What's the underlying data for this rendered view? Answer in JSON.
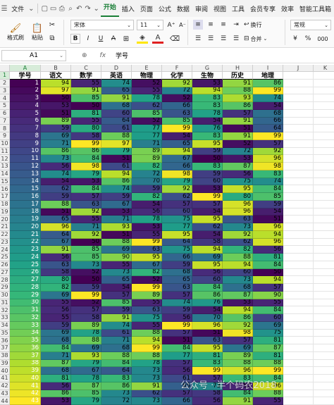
{
  "menubar": {
    "file": "文件",
    "tabs": [
      "开始",
      "插入",
      "页面",
      "公式",
      "数据",
      "审阅",
      "视图",
      "工具",
      "会员专享",
      "效率",
      "智能工具箱"
    ],
    "active": "开始"
  },
  "ribbon": {
    "format_painter": "格式刷",
    "paste": "粘贴",
    "font_name": "宋体",
    "font_size": "11",
    "wrap": "换行",
    "merge": "合并",
    "number_format": "常规"
  },
  "formula_bar": {
    "name_box": "A1",
    "fx": "fx",
    "value": "学号"
  },
  "columns": [
    "A",
    "B",
    "C",
    "D",
    "E",
    "F",
    "G",
    "H",
    "I",
    "J",
    "K"
  ],
  "headers": [
    "学号",
    "语文",
    "数学",
    "英语",
    "物理",
    "化学",
    "生物",
    "历史",
    "地理"
  ],
  "rows": [
    [
      1,
      94,
      55,
      74,
      52,
      92,
      53,
      91,
      86
    ],
    [
      2,
      97,
      91,
      65,
      55,
      72,
      94,
      88,
      99
    ],
    [
      3,
      50,
      85,
      91,
      78,
      52,
      83,
      93,
      74
    ],
    [
      4,
      53,
      50,
      68,
      62,
      66,
      83,
      86,
      54
    ],
    [
      5,
      51,
      81,
      60,
      85,
      63,
      78,
      57,
      68
    ],
    [
      6,
      89,
      55,
      64,
      52,
      85,
      54,
      91,
      66
    ],
    [
      7,
      59,
      80,
      61,
      77,
      99,
      76,
      51,
      64
    ],
    [
      8,
      69,
      58,
      88,
      77,
      54,
      83,
      91,
      99
    ],
    [
      9,
      71,
      99,
      97,
      71,
      65,
      95,
      52,
      57
    ],
    [
      10,
      86,
      86,
      79,
      89,
      94,
      59,
      72,
      92
    ],
    [
      11,
      73,
      84,
      51,
      89,
      67,
      50,
      53,
      96
    ],
    [
      12,
      56,
      98,
      61,
      82,
      66,
      83,
      87,
      98
    ],
    [
      13,
      74,
      79,
      94,
      72,
      98,
      59,
      56,
      83
    ],
    [
      14,
      54,
      53,
      86,
      70,
      79,
      60,
      75,
      74
    ],
    [
      15,
      62,
      84,
      74,
      59,
      92,
      53,
      95,
      84
    ],
    [
      16,
      59,
      57,
      59,
      82,
      62,
      99,
      80,
      85
    ],
    [
      17,
      88,
      63,
      67,
      54,
      57,
      57,
      96,
      59
    ],
    [
      18,
      51,
      92,
      53,
      56,
      60,
      54,
      96,
      54
    ],
    [
      19,
      65,
      55,
      71,
      78,
      75,
      95,
      63,
      51
    ],
    [
      20,
      96,
      71,
      93,
      53,
      77,
      62,
      73,
      96
    ],
    [
      21,
      64,
      92,
      51,
      55,
      95,
      54,
      92,
      94
    ],
    [
      22,
      67,
      50,
      88,
      99,
      64,
      58,
      62,
      96
    ],
    [
      23,
      91,
      85,
      69,
      63,
      75,
      94,
      82,
      56
    ],
    [
      24,
      56,
      85,
      90,
      95,
      66,
      69,
      88,
      81
    ],
    [
      25,
      63,
      73,
      55,
      67,
      59,
      95,
      94,
      84
    ],
    [
      26,
      58,
      52,
      73,
      82,
      68,
      56,
      60,
      50
    ],
    [
      27,
      80,
      50,
      65,
      52,
      65,
      60,
      73,
      94
    ],
    [
      28,
      82,
      59,
      54,
      99,
      63,
      84,
      68,
      57
    ],
    [
      29,
      69,
      99,
      57,
      89,
      57,
      86,
      87,
      90
    ],
    [
      30,
      55,
      52,
      85,
      55,
      74,
      76,
      53,
      55
    ],
    [
      31,
      56,
      57,
      59,
      63,
      59,
      54,
      94,
      84
    ],
    [
      32,
      55,
      58,
      91,
      75,
      56,
      70,
      86,
      60
    ],
    [
      33,
      59,
      89,
      74,
      55,
      99,
      96,
      92,
      69
    ],
    [
      34,
      69,
      78,
      61,
      88,
      57,
      51,
      98,
      75
    ],
    [
      35,
      68,
      88,
      71,
      94,
      51,
      63,
      57,
      81
    ],
    [
      36,
      84,
      69,
      68,
      99,
      84,
      95,
      69,
      87
    ],
    [
      37,
      71,
      93,
      88,
      88,
      77,
      81,
      89,
      81
    ],
    [
      38,
      87,
      79,
      84,
      78,
      57,
      83,
      88,
      88
    ],
    [
      39,
      68,
      67,
      64,
      73,
      56,
      99,
      96,
      99
    ],
    [
      40,
      81,
      78,
      83,
      73,
      61,
      57,
      83,
      84
    ],
    [
      41,
      56,
      87,
      86,
      91,
      65,
      73,
      55,
      96
    ],
    [
      42,
      86,
      85,
      73,
      62,
      57,
      58,
      84,
      88
    ],
    [
      43,
      53,
      79,
      72,
      73,
      66,
      56,
      91,
      55
    ]
  ],
  "watermark": "公众号 · 半个码农2018"
}
